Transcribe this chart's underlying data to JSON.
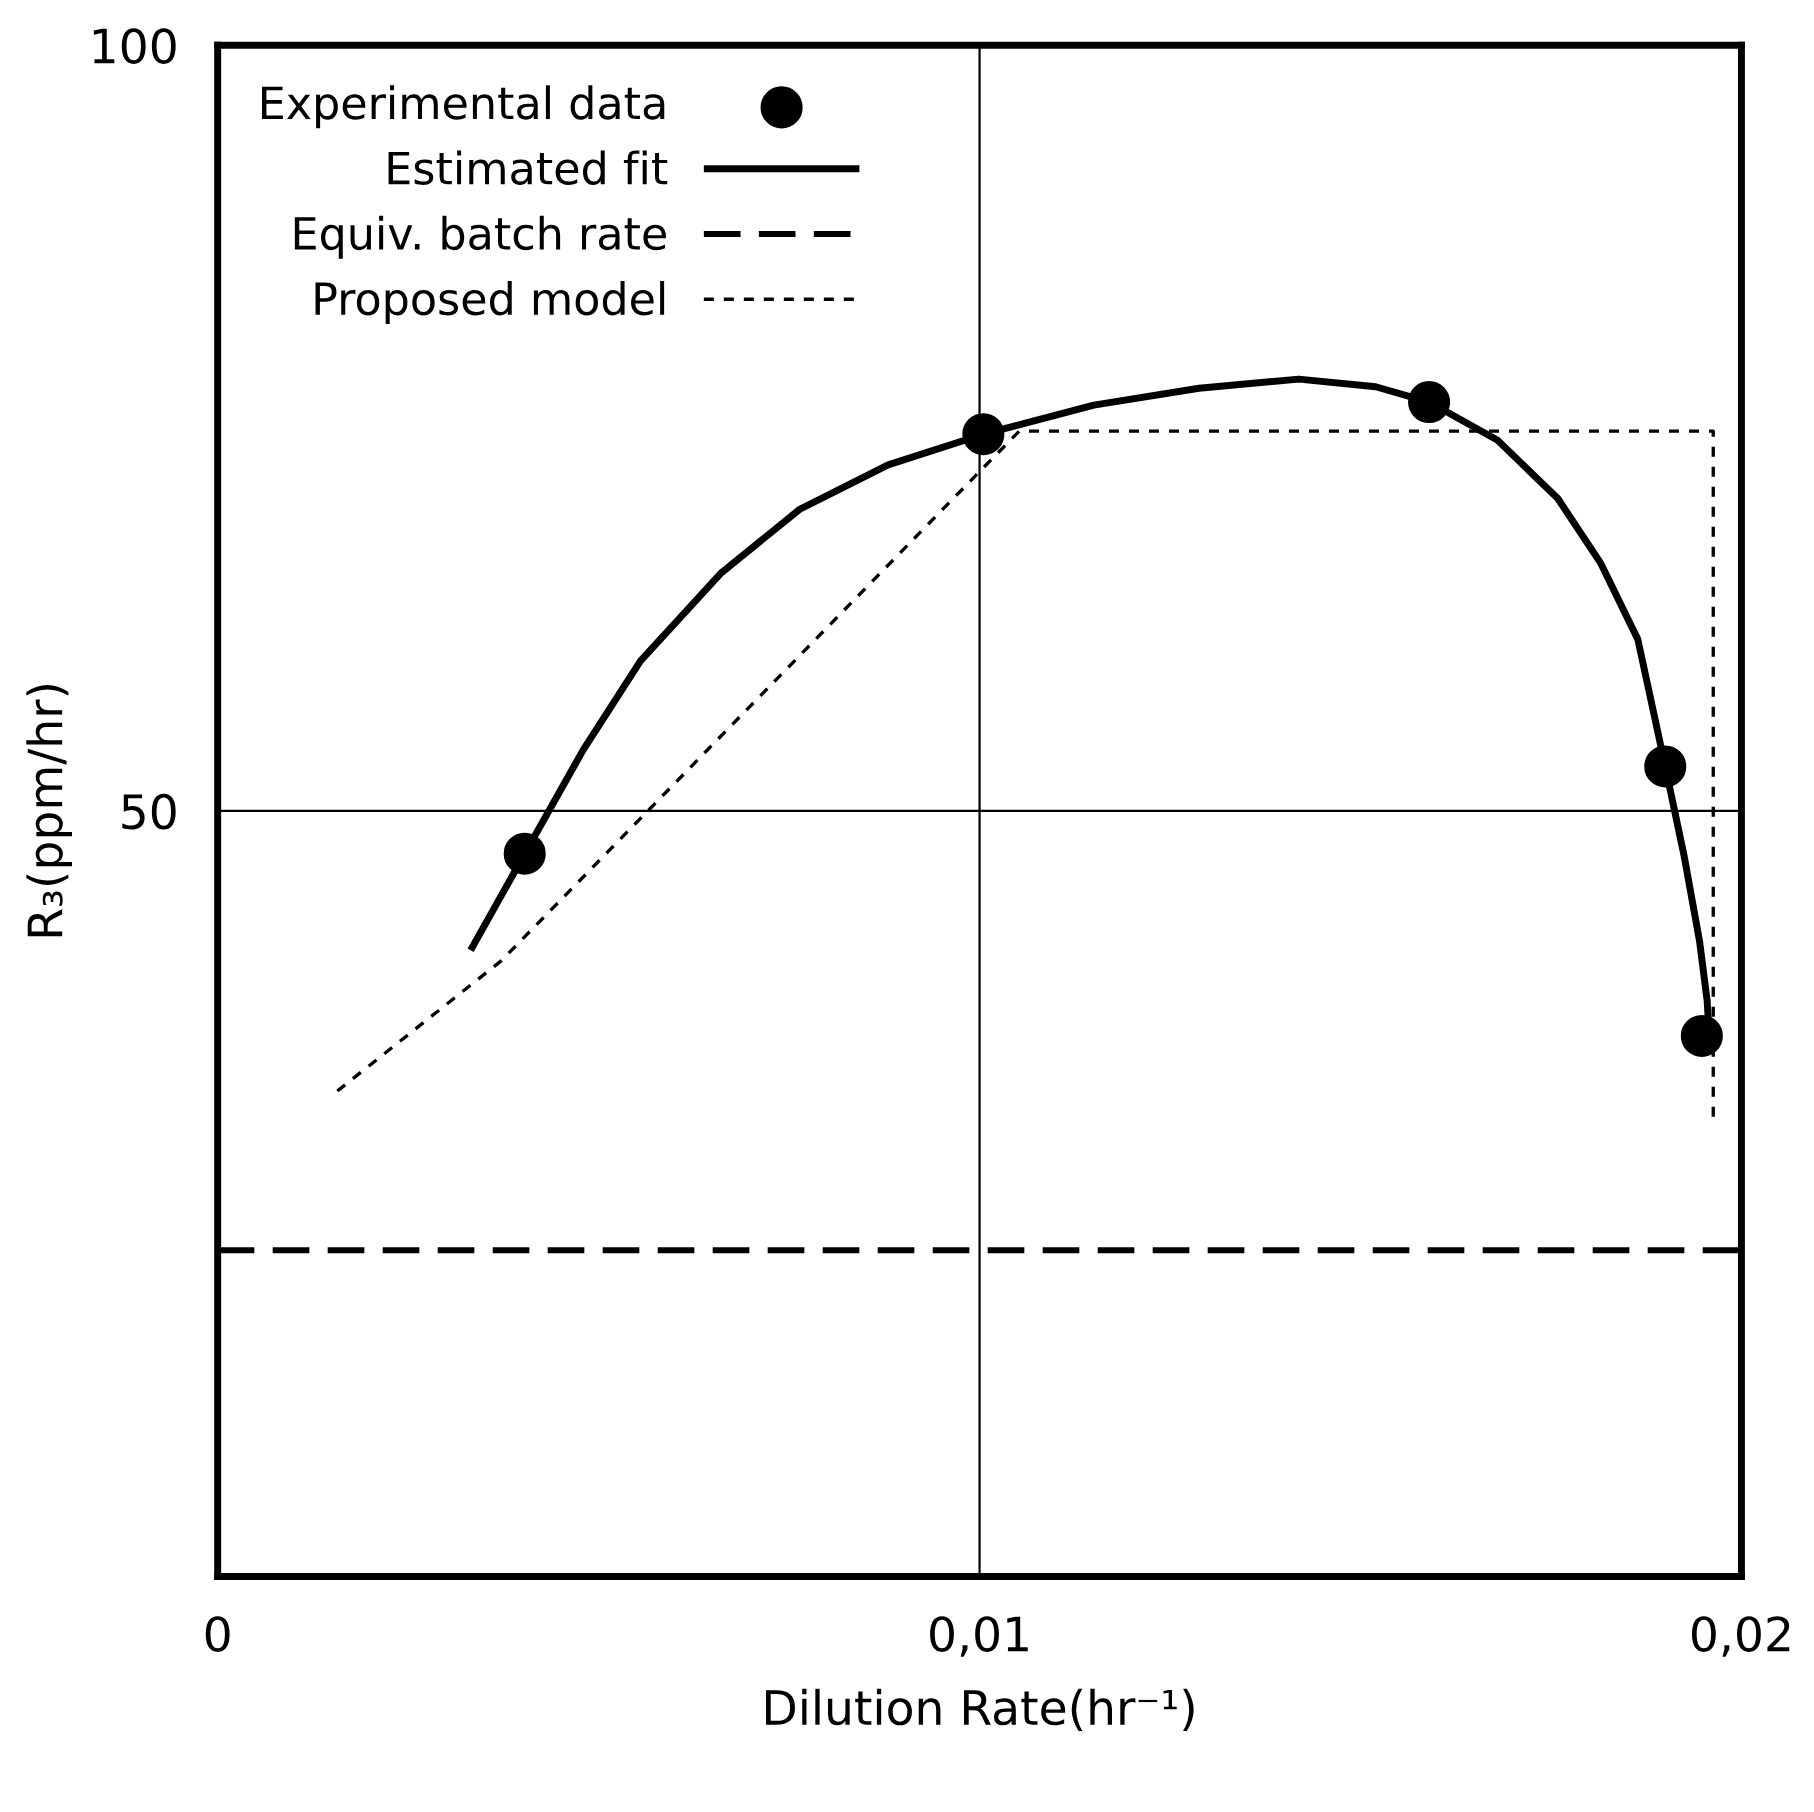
{
  "chart_data": {
    "type": "line",
    "xlabel": "Dilution Rate(hr⁻¹)",
    "ylabel": "R₃(ppm/hr)",
    "xlim": [
      0,
      0.02
    ],
    "ylim": [
      0,
      100
    ],
    "xticks": [
      0,
      {
        "value": 0.01,
        "label": "0,01"
      },
      {
        "value": 0.02,
        "label": "0,02"
      }
    ],
    "yticks": [
      50,
      100
    ],
    "ref_lines": [
      {
        "axis": "x",
        "value": 0.01
      },
      {
        "axis": "y",
        "value": 50
      }
    ],
    "legend": "top left",
    "series": [
      {
        "name": "Experimental data",
        "type": "scatter",
        "marker": "circle",
        "color": "#000000",
        "x": [
          0.00403,
          0.01005,
          0.0159,
          0.019,
          0.01948
        ],
        "values": [
          47.2,
          74.6,
          76.7,
          52.9,
          35.3
        ]
      },
      {
        "name": "Estimated fit",
        "line_style": "solid",
        "color": "#000000",
        "x": [
          0.00332,
          0.00403,
          0.0048,
          0.00555,
          0.0066,
          0.00764,
          0.0088,
          0.01005,
          0.0115,
          0.01288,
          0.01419,
          0.0152,
          0.0159,
          0.0168,
          0.01759,
          0.01815,
          0.01864,
          0.019,
          0.01925,
          0.01945,
          0.01955,
          0.01958
        ],
        "values": [
          40.9,
          47.2,
          54.0,
          59.8,
          65.5,
          69.7,
          72.6,
          74.6,
          76.5,
          77.6,
          78.2,
          77.7,
          76.7,
          74.2,
          70.4,
          66.2,
          61.2,
          52.9,
          47.0,
          41.5,
          37.6,
          35.0
        ]
      },
      {
        "name": "Equiv. batch rate",
        "line_style": "dashed",
        "color": "#000000",
        "x": [
          0,
          0.02
        ],
        "values": [
          21.3,
          21.3
        ]
      },
      {
        "name": "Proposed model",
        "line_style": "dotted",
        "color": "#000000",
        "x": [
          0.00157,
          0.00372,
          0.01052,
          0.01963,
          0.01963
        ],
        "values": [
          31.7,
          40.2,
          74.8,
          74.8,
          29.6
        ]
      }
    ]
  }
}
